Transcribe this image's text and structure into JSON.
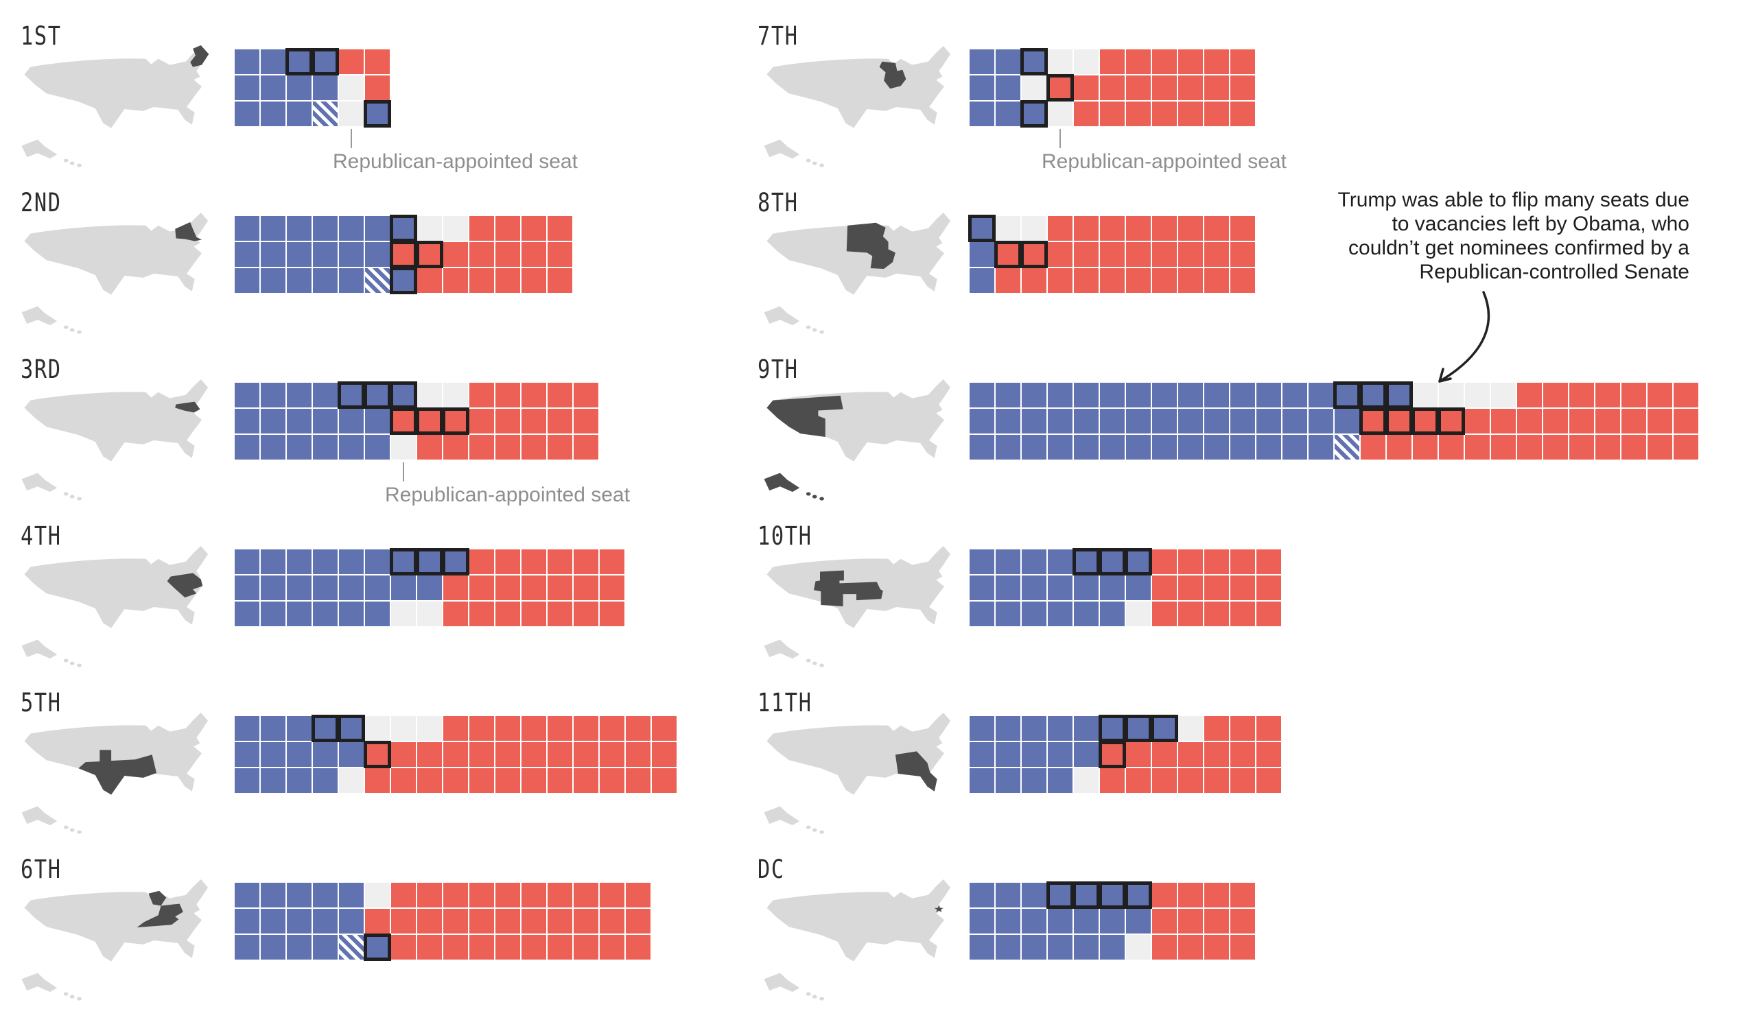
{
  "chart_data": {
    "type": "waffle",
    "layout": {
      "columns": 2,
      "rows_per_column": 6,
      "grid_rows_per_circuit": 3
    },
    "colors": {
      "dem_seat": "#6172b1",
      "rep_seat": "#ec6055",
      "vacant_seat": "#efefef",
      "hatched_seat": "blue-white-diagonal-stripes",
      "flip_outline": "#1f1f1f",
      "map_base": "#d9d9d9",
      "map_highlight": "#4d4d4d",
      "caption_text": "#8e8e8e",
      "annotation_text": "#1e1e1e",
      "label_text": "#2d2d2d"
    },
    "cell_codes": {
      "B": "blue seat",
      "R": "red seat",
      "E": "light-gray (vacant) seat",
      "H": "blue-white hatched seat",
      "O_suffix": "black outlined seat"
    },
    "captions_text": "Republican-appointed seat",
    "annotation": {
      "lines": [
        "Trump was able to flip many seats due",
        "to vacancies left by Obama, who",
        "couldn’t get nominees confirmed by a",
        "Republican-controlled Senate"
      ],
      "arrow_points_to": "9th circuit vacant seats, top row"
    },
    "circuits": [
      {
        "id": "1st",
        "label": "1ST",
        "side": "left",
        "row": 0,
        "map_states": [
          "ME",
          "NH",
          "MA",
          "RI"
        ],
        "grid": [
          "B B BO BO R R",
          "B B B B E R",
          "B B B H E BO"
        ],
        "caption": {
          "text": "Republican-appointed seat",
          "pointer_col": 5
        }
      },
      {
        "id": "2nd",
        "label": "2ND",
        "side": "left",
        "row": 1,
        "map_states": [
          "NY",
          "VT",
          "CT"
        ],
        "grid": [
          "B B B B B B BO E E R R R R",
          "B B B B B B RO RO R R R R R",
          "B B B B B H BO R R R R R R"
        ]
      },
      {
        "id": "3rd",
        "label": "3RD",
        "side": "left",
        "row": 2,
        "map_states": [
          "PA",
          "NJ",
          "DE"
        ],
        "grid": [
          "B B B B BO BO BO E E R R R R R",
          "B B B B B B RO RO RO R R R R R",
          "B B B B B B E R R R R R R R"
        ],
        "caption": {
          "text": "Republican-appointed seat",
          "pointer_col": 7
        }
      },
      {
        "id": "4th",
        "label": "4TH",
        "side": "left",
        "row": 3,
        "map_states": [
          "MD",
          "WV",
          "VA",
          "NC",
          "SC"
        ],
        "grid": [
          "B B B B B B BO BO BO R R R R R R",
          "B B B B B B B B R R R R R R R",
          "B B B B B B E E R R R R R R R"
        ]
      },
      {
        "id": "5th",
        "label": "5TH",
        "side": "left",
        "row": 4,
        "map_states": [
          "TX",
          "LA",
          "MS"
        ],
        "grid": [
          "B B B BO BO E E E R R R R R R R R R",
          "B B B B B RO R R R R R R R R R R R",
          "B B B B E R R R R R R R R R R R R"
        ]
      },
      {
        "id": "6th",
        "label": "6TH",
        "side": "left",
        "row": 5,
        "map_states": [
          "MI",
          "OH",
          "KY",
          "TN"
        ],
        "grid": [
          "B B B B B E R R R R R R R R R R",
          "B B B B B R R R R R R R R R R R",
          "B B B B H BO R R R R R R R R R R"
        ]
      },
      {
        "id": "7th",
        "label": "7TH",
        "side": "right",
        "row": 0,
        "map_states": [
          "WI",
          "IL",
          "IN"
        ],
        "grid": [
          "B B BO E E R R R R R R",
          "B B E RO R R R R R R R",
          "B B BO E R R R R R R R"
        ],
        "caption": {
          "text": "Republican-appointed seat",
          "pointer_col": 4
        }
      },
      {
        "id": "8th",
        "label": "8TH",
        "side": "right",
        "row": 1,
        "map_states": [
          "ND",
          "SD",
          "NE",
          "MN",
          "IA",
          "MO",
          "AR"
        ],
        "grid": [
          "BO E E R R R R R R R R",
          "B RO RO R R R R R R R R",
          "B R R R R R R R R R R"
        ]
      },
      {
        "id": "9th",
        "label": "9TH",
        "side": "right",
        "row": 2,
        "map_states": [
          "WA",
          "OR",
          "CA",
          "NV",
          "ID",
          "MT",
          "AZ",
          "AK",
          "HI"
        ],
        "grid": [
          "B B B B B B B B B B B B B B BO BO BO E E E E R R R R R R R",
          "B B B B B B B B B B B B B B B RO RO RO RO R R R R R R R R R",
          "B B B B B B B B B B B B B B H R R R R R R R R R R R R R"
        ]
      },
      {
        "id": "10th",
        "label": "10TH",
        "side": "right",
        "row": 3,
        "map_states": [
          "WY",
          "UT",
          "CO",
          "NM",
          "KS",
          "OK"
        ],
        "grid": [
          "B B B B BO BO BO R R R R R",
          "B B B B B B B R R R R R",
          "B B B B B B E R R R R R"
        ]
      },
      {
        "id": "11th",
        "label": "11TH",
        "side": "right",
        "row": 4,
        "map_states": [
          "AL",
          "GA",
          "FL"
        ],
        "grid": [
          "B B B B B BO BO BO E R R R",
          "B B B B B RO R R R R R R",
          "B B B B E R R R R R R R"
        ]
      },
      {
        "id": "dc",
        "label": "DC",
        "side": "right",
        "row": 5,
        "map_states": [
          "DC"
        ],
        "grid": [
          "B B B BO BO BO BO R R R R",
          "B B B B B B B R R R R",
          "B B B B B B E R R R R"
        ]
      }
    ]
  }
}
